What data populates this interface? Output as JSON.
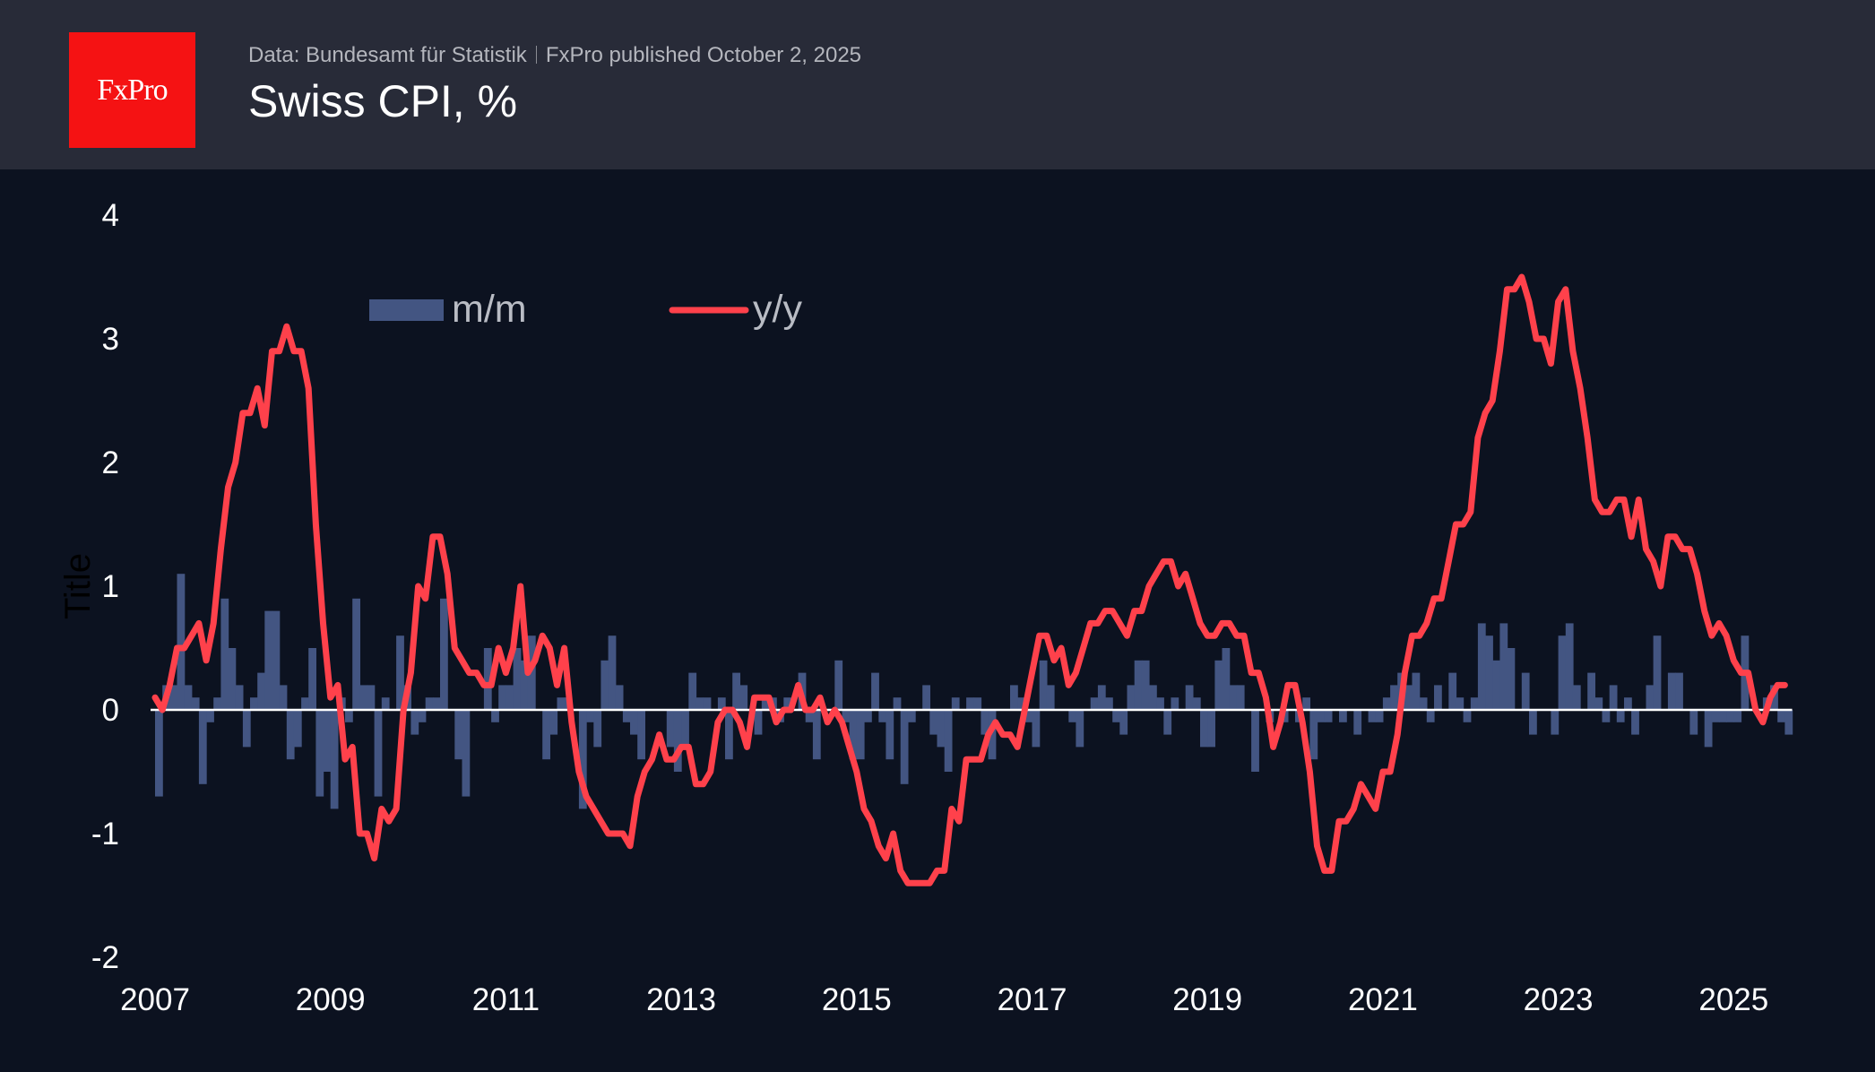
{
  "header": {
    "logo_text": "FxPro",
    "source": "Data: Bundesamt für Statistik",
    "published": "FxPro published October 2, 2025",
    "title": "Swiss CPI, %"
  },
  "colors": {
    "background": "#0c1220",
    "header": "#282b38",
    "logo": "#f51213",
    "bars": "#435582",
    "line": "#ff414b",
    "zero_line": "#ffffff"
  },
  "chart_data": {
    "type": "bar+line",
    "title": "Swiss CPI, %",
    "ylabel": "Title",
    "xlabel": "",
    "ylim": [
      -2,
      4
    ],
    "yticks": [
      "4",
      "3",
      "2",
      "1",
      "0",
      "-1",
      "-2"
    ],
    "xticks": [
      "2007",
      "2009",
      "2011",
      "2013",
      "2015",
      "2017",
      "2019",
      "2021",
      "2023",
      "2025"
    ],
    "x_start": "2007-01",
    "x_end": "2025-08",
    "frequency": "monthly",
    "legend": {
      "placement": "top-center",
      "entries": [
        "m/m",
        "y/y"
      ]
    },
    "grid": false,
    "series": [
      {
        "name": "m/m",
        "type": "bar",
        "values": [
          -0.7,
          0.2,
          0.2,
          1.1,
          0.2,
          0.1,
          -0.6,
          -0.1,
          0.1,
          0.9,
          0.5,
          0.2,
          -0.3,
          0.1,
          0.3,
          0.8,
          0.8,
          0.2,
          -0.4,
          -0.3,
          0.1,
          0.5,
          -0.7,
          -0.5,
          -0.8,
          0.1,
          -0.1,
          0.9,
          0.2,
          0.2,
          -0.7,
          0.1,
          0.0,
          0.6,
          0.2,
          -0.2,
          -0.1,
          0.1,
          0.1,
          0.9,
          0.0,
          -0.4,
          -0.7,
          0.0,
          0.0,
          0.5,
          -0.1,
          0.2,
          0.2,
          0.5,
          0.4,
          0.6,
          0.0,
          -0.4,
          -0.2,
          0.1,
          0.1,
          0.0,
          -0.8,
          -0.1,
          -0.3,
          0.4,
          0.6,
          0.2,
          -0.1,
          -0.2,
          -0.4,
          0.0,
          0.0,
          0.0,
          -0.3,
          -0.5,
          -0.3,
          0.3,
          0.1,
          0.1,
          0.0,
          0.1,
          -0.4,
          0.3,
          0.2,
          0.0,
          -0.2,
          0.1,
          0.1,
          -0.1,
          0.1,
          0.0,
          0.3,
          -0.1,
          -0.4,
          0.0,
          0.0,
          0.4,
          -0.1,
          -0.4,
          -0.4,
          -0.1,
          0.3,
          -0.1,
          -0.4,
          0.1,
          -0.6,
          -0.1,
          0.0,
          0.2,
          -0.2,
          -0.3,
          -0.5,
          0.1,
          0.0,
          0.1,
          0.1,
          -0.2,
          -0.4,
          0.0,
          0.0,
          0.2,
          0.1,
          -0.1,
          -0.3,
          0.4,
          0.2,
          0.0,
          0.0,
          -0.1,
          -0.3,
          0.0,
          0.1,
          0.2,
          0.1,
          -0.1,
          -0.2,
          0.2,
          0.4,
          0.4,
          0.2,
          0.1,
          -0.2,
          0.1,
          0.0,
          0.2,
          0.1,
          -0.3,
          -0.3,
          0.4,
          0.5,
          0.2,
          0.2,
          0.0,
          -0.5,
          0.0,
          -0.1,
          0.0,
          -0.1,
          0.0,
          -0.1,
          0.1,
          -0.4,
          -0.1,
          -0.1,
          0.0,
          -0.1,
          0.0,
          -0.2,
          0.0,
          -0.1,
          -0.1,
          0.1,
          0.2,
          0.3,
          0.2,
          0.3,
          0.1,
          -0.1,
          0.2,
          0.0,
          0.3,
          0.1,
          -0.1,
          0.1,
          0.7,
          0.6,
          0.4,
          0.7,
          0.5,
          0.0,
          0.3,
          -0.2,
          0.0,
          0.0,
          -0.2,
          0.6,
          0.7,
          0.2,
          0.0,
          0.3,
          0.1,
          -0.1,
          0.2,
          -0.1,
          0.1,
          -0.2,
          0.0,
          0.2,
          0.6,
          0.0,
          0.3,
          0.3,
          0.0,
          -0.2,
          0.0,
          -0.3,
          -0.1,
          -0.1,
          -0.1,
          -0.1,
          0.6,
          0.0,
          0.0,
          0.1,
          0.2,
          -0.1,
          -0.2
        ]
      },
      {
        "name": "y/y",
        "type": "line",
        "values": [
          0.1,
          0.0,
          0.2,
          0.5,
          0.5,
          0.6,
          0.7,
          0.4,
          0.7,
          1.3,
          1.8,
          2.0,
          2.4,
          2.4,
          2.6,
          2.3,
          2.9,
          2.9,
          3.1,
          2.9,
          2.9,
          2.6,
          1.5,
          0.7,
          0.1,
          0.2,
          -0.4,
          -0.3,
          -1.0,
          -1.0,
          -1.2,
          -0.8,
          -0.9,
          -0.8,
          0.0,
          0.3,
          1.0,
          0.9,
          1.4,
          1.4,
          1.1,
          0.5,
          0.4,
          0.3,
          0.3,
          0.2,
          0.2,
          0.5,
          0.3,
          0.5,
          1.0,
          0.3,
          0.4,
          0.6,
          0.5,
          0.2,
          0.5,
          -0.1,
          -0.5,
          -0.7,
          -0.8,
          -0.9,
          -1.0,
          -1.0,
          -1.0,
          -1.1,
          -0.7,
          -0.5,
          -0.4,
          -0.2,
          -0.4,
          -0.4,
          -0.3,
          -0.3,
          -0.6,
          -0.6,
          -0.5,
          -0.1,
          0.0,
          0.0,
          -0.1,
          -0.3,
          0.1,
          0.1,
          0.1,
          -0.1,
          0.0,
          0.0,
          0.2,
          0.0,
          0.0,
          0.1,
          -0.1,
          0.0,
          -0.1,
          -0.3,
          -0.5,
          -0.8,
          -0.9,
          -1.1,
          -1.2,
          -1.0,
          -1.3,
          -1.4,
          -1.4,
          -1.4,
          -1.4,
          -1.3,
          -1.3,
          -0.8,
          -0.9,
          -0.4,
          -0.4,
          -0.4,
          -0.2,
          -0.1,
          -0.2,
          -0.2,
          -0.3,
          0.0,
          0.3,
          0.6,
          0.6,
          0.4,
          0.5,
          0.2,
          0.3,
          0.5,
          0.7,
          0.7,
          0.8,
          0.8,
          0.7,
          0.6,
          0.8,
          0.8,
          1.0,
          1.1,
          1.2,
          1.2,
          1.0,
          1.1,
          0.9,
          0.7,
          0.6,
          0.6,
          0.7,
          0.7,
          0.6,
          0.6,
          0.3,
          0.3,
          0.1,
          -0.3,
          -0.1,
          0.2,
          0.2,
          -0.1,
          -0.5,
          -1.1,
          -1.3,
          -1.3,
          -0.9,
          -0.9,
          -0.8,
          -0.6,
          -0.7,
          -0.8,
          -0.5,
          -0.5,
          -0.2,
          0.3,
          0.6,
          0.6,
          0.7,
          0.9,
          0.9,
          1.2,
          1.5,
          1.5,
          1.6,
          2.2,
          2.4,
          2.5,
          2.9,
          3.4,
          3.4,
          3.5,
          3.3,
          3.0,
          3.0,
          2.8,
          3.3,
          3.4,
          2.9,
          2.6,
          2.2,
          1.7,
          1.6,
          1.6,
          1.7,
          1.7,
          1.4,
          1.7,
          1.3,
          1.2,
          1.0,
          1.4,
          1.4,
          1.3,
          1.3,
          1.1,
          0.8,
          0.6,
          0.7,
          0.6,
          0.4,
          0.3,
          0.3,
          0.0,
          -0.1,
          0.1,
          0.2,
          0.2
        ]
      }
    ]
  }
}
